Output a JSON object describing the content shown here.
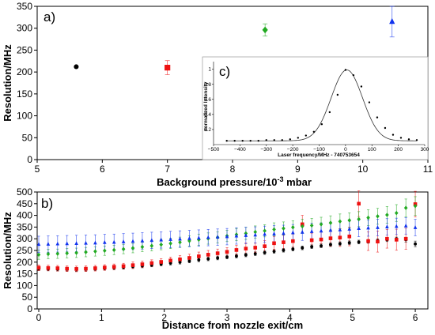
{
  "chart_data": [
    {
      "panel": "a)",
      "type": "scatter",
      "xlabel": "Background pressure/10",
      "xlabel_sup": "-3",
      "xlabel_unit": " mbar",
      "ylabel": "Resolution/MHz",
      "xlim": [
        5,
        11
      ],
      "ylim": [
        0,
        350
      ],
      "xticks": [
        5,
        6,
        7,
        8,
        9,
        10,
        11
      ],
      "yticks": [
        0,
        50,
        100,
        150,
        200,
        250,
        300,
        350
      ],
      "grid": false,
      "points": [
        {
          "x": 5.6,
          "y": 212,
          "err": 0,
          "marker": "circle",
          "color": "#000000"
        },
        {
          "x": 7.0,
          "y": 210,
          "err": 16,
          "marker": "square",
          "color": "#ee1111"
        },
        {
          "x": 8.5,
          "y": 296,
          "err": 14,
          "marker": "diamond",
          "color": "#22aa22"
        },
        {
          "x": 10.45,
          "y": 315,
          "err": 35,
          "marker": "triangle",
          "color": "#1133ee"
        }
      ]
    },
    {
      "panel": "b)",
      "type": "scatter",
      "xlabel": "Distance from nozzle exit/cm",
      "ylabel": "Resolution/MHz",
      "xlim": [
        0,
        6.1
      ],
      "ylim": [
        0,
        500
      ],
      "xticks": [
        0,
        1,
        2,
        3,
        4,
        5,
        6
      ],
      "yticks": [
        0,
        50,
        100,
        150,
        200,
        250,
        300,
        350,
        400,
        450,
        500
      ],
      "grid": false,
      "x": [
        0.0,
        0.15,
        0.3,
        0.45,
        0.6,
        0.75,
        0.9,
        1.05,
        1.2,
        1.35,
        1.5,
        1.65,
        1.8,
        1.95,
        2.1,
        2.25,
        2.4,
        2.55,
        2.7,
        2.85,
        3.0,
        3.15,
        3.3,
        3.45,
        3.6,
        3.75,
        3.9,
        4.05,
        4.2,
        4.35,
        4.5,
        4.65,
        4.8,
        4.95,
        5.1,
        5.25,
        5.4,
        5.55,
        5.7,
        5.85,
        6.0
      ],
      "series": [
        {
          "marker": "circle",
          "color": "#000000",
          "values": [
            172,
            171,
            170,
            170,
            169,
            170,
            172,
            174,
            176,
            178,
            181,
            184,
            188,
            192,
            196,
            200,
            205,
            210,
            214,
            218,
            222,
            226,
            231,
            236,
            241,
            246,
            251,
            256,
            261,
            266,
            270,
            275,
            279,
            283,
            286,
            289,
            292,
            296,
            299,
            296,
            278
          ],
          "errors": [
            8,
            8,
            8,
            8,
            8,
            8,
            8,
            8,
            8,
            8,
            8,
            8,
            8,
            8,
            8,
            8,
            8,
            8,
            8,
            8,
            8,
            8,
            8,
            8,
            8,
            8,
            8,
            8,
            8,
            8,
            8,
            8,
            8,
            8,
            8,
            8,
            8,
            8,
            8,
            10,
            12
          ]
        },
        {
          "marker": "square",
          "color": "#ee1111",
          "values": [
            176,
            175,
            174,
            172,
            171,
            172,
            174,
            177,
            180,
            183,
            187,
            191,
            196,
            201,
            207,
            212,
            218,
            225,
            232,
            238,
            244,
            252,
            258,
            262,
            268,
            281,
            285,
            290,
            362,
            294,
            297,
            302,
            305,
            310,
            450,
            290,
            288,
            300,
            296,
            300,
            448
          ],
          "errors": [
            12,
            12,
            12,
            12,
            12,
            12,
            12,
            12,
            12,
            12,
            14,
            14,
            14,
            14,
            14,
            16,
            16,
            18,
            18,
            18,
            18,
            20,
            24,
            20,
            24,
            28,
            30,
            30,
            38,
            30,
            32,
            34,
            38,
            40,
            55,
            40,
            45,
            40,
            45,
            45,
            55
          ]
        },
        {
          "marker": "diamond",
          "color": "#22aa22",
          "values": [
            232,
            235,
            236,
            238,
            240,
            243,
            246,
            249,
            252,
            256,
            260,
            265,
            270,
            275,
            280,
            285,
            291,
            296,
            301,
            306,
            312,
            318,
            323,
            329,
            334,
            340,
            344,
            349,
            353,
            357,
            362,
            368,
            374,
            379,
            384,
            390,
            396,
            402,
            410,
            432,
            440
          ],
          "errors": [
            20,
            20,
            20,
            20,
            20,
            20,
            20,
            20,
            20,
            20,
            20,
            20,
            22,
            22,
            22,
            22,
            22,
            24,
            24,
            24,
            24,
            26,
            26,
            26,
            26,
            28,
            28,
            28,
            30,
            30,
            30,
            30,
            32,
            32,
            32,
            34,
            34,
            36,
            36,
            38,
            40
          ]
        },
        {
          "marker": "triangle",
          "color": "#1133ee",
          "values": [
            276,
            277,
            278,
            279,
            280,
            281,
            282,
            284,
            285,
            287,
            289,
            291,
            293,
            295,
            297,
            299,
            301,
            303,
            305,
            307,
            309,
            312,
            314,
            316,
            319,
            321,
            323,
            326,
            328,
            331,
            333,
            336,
            338,
            341,
            344,
            346,
            348,
            351,
            353,
            355,
            348
          ],
          "errors": [
            35,
            35,
            35,
            35,
            35,
            35,
            35,
            35,
            35,
            35,
            35,
            35,
            35,
            35,
            35,
            35,
            35,
            35,
            35,
            35,
            35,
            35,
            35,
            35,
            35,
            35,
            35,
            35,
            35,
            35,
            35,
            35,
            35,
            35,
            35,
            35,
            35,
            35,
            35,
            35,
            35
          ]
        }
      ]
    },
    {
      "panel": "c)",
      "type": "line",
      "xlabel": "Laser frequency/MHz - 740753654",
      "ylabel": "normalized Intensity",
      "xlim": [
        -500,
        300
      ],
      "ylim": [
        0,
        1.1
      ],
      "xticks": [
        -500,
        -400,
        -300,
        -200,
        -100,
        0,
        100,
        200,
        300
      ],
      "yticks": [
        0.2,
        0.4,
        0.6,
        0.8,
        1.0
      ],
      "grid": false,
      "x": [
        -450,
        -420,
        -390,
        -360,
        -330,
        -300,
        -270,
        -240,
        -210,
        -180,
        -150,
        -120,
        -90,
        -60,
        -30,
        0,
        30,
        60,
        90,
        120,
        150,
        180,
        210,
        240,
        270
      ],
      "values": [
        0.05,
        0.05,
        0.05,
        0.05,
        0.05,
        0.06,
        0.06,
        0.06,
        0.07,
        0.09,
        0.12,
        0.17,
        0.27,
        0.43,
        0.66,
        0.99,
        0.92,
        0.77,
        0.56,
        0.36,
        0.22,
        0.13,
        0.09,
        0.07,
        0.06
      ],
      "fit_center": 5,
      "fit_width": 140,
      "fit_amp": 0.94,
      "fit_baseline": 0.05
    }
  ]
}
